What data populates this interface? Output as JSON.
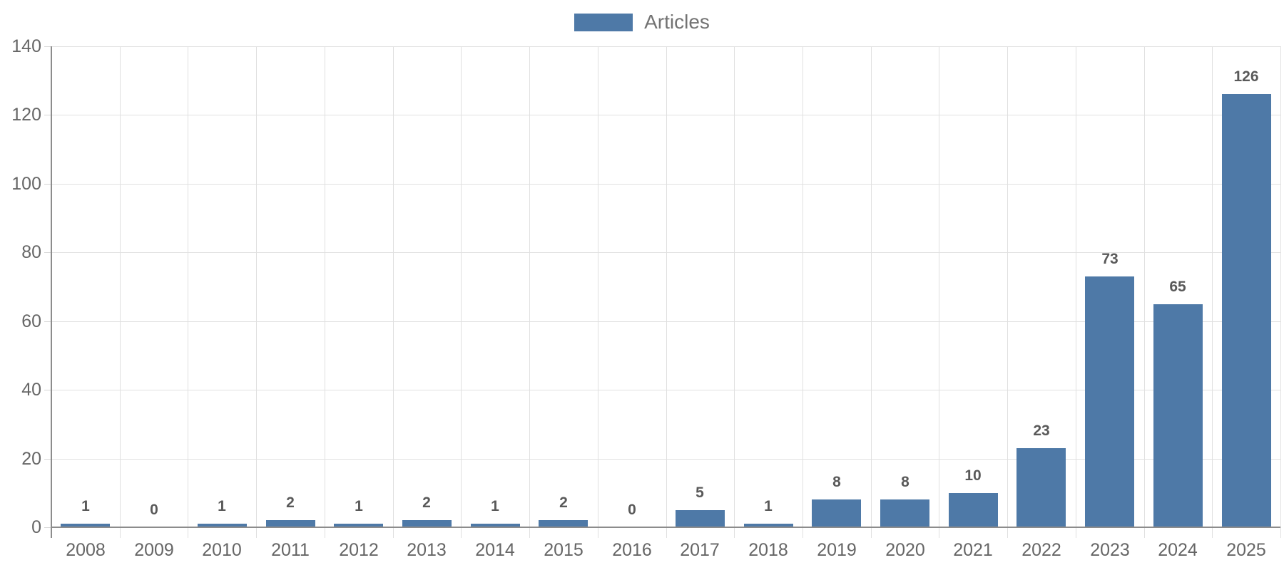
{
  "chart_data": {
    "type": "bar",
    "title": "",
    "xlabel": "",
    "ylabel": "",
    "categories": [
      "2008",
      "2009",
      "2010",
      "2011",
      "2012",
      "2013",
      "2014",
      "2015",
      "2016",
      "2017",
      "2018",
      "2019",
      "2020",
      "2021",
      "2022",
      "2023",
      "2024",
      "2025"
    ],
    "values": [
      1,
      0,
      1,
      2,
      1,
      2,
      1,
      2,
      0,
      5,
      1,
      8,
      8,
      10,
      23,
      73,
      65,
      126
    ],
    "series_name": "Articles",
    "ylim": [
      0,
      140
    ],
    "yticks": [
      0,
      20,
      40,
      60,
      80,
      100,
      120,
      140
    ],
    "grid": true,
    "legend_position": "top-center",
    "data_labels_shown": true,
    "colors": {
      "bar": "#4e79a7",
      "value_label": "#595959",
      "tick_label": "#666666",
      "legend_label": "#737373",
      "gridline": "#e0e0e0",
      "axis_line": "#8c8c8c",
      "background": "#ffffff"
    }
  }
}
